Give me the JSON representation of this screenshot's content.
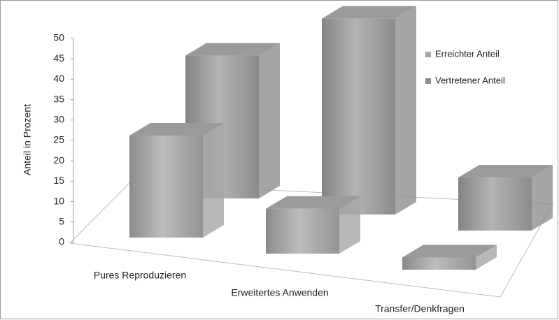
{
  "chart_data": {
    "type": "bar3d",
    "y_label": "Anteil in Prozent",
    "categories": [
      "Pures Reproduzieren",
      "Erweitertes Anwenden",
      "Transfer/Denkfragen"
    ],
    "series": [
      {
        "name": "Erreichter Anteil",
        "color": "#a6a6a6",
        "values": [
          25,
          11,
          3
        ]
      },
      {
        "name": "Vertretener Anteil",
        "color": "#8f8f8f",
        "values": [
          35,
          48,
          13
        ]
      }
    ],
    "ylim": [
      0,
      50
    ],
    "yticks": [
      0,
      5,
      10,
      15,
      20,
      25,
      30,
      35,
      40,
      45,
      50
    ],
    "legend": "upper right"
  }
}
